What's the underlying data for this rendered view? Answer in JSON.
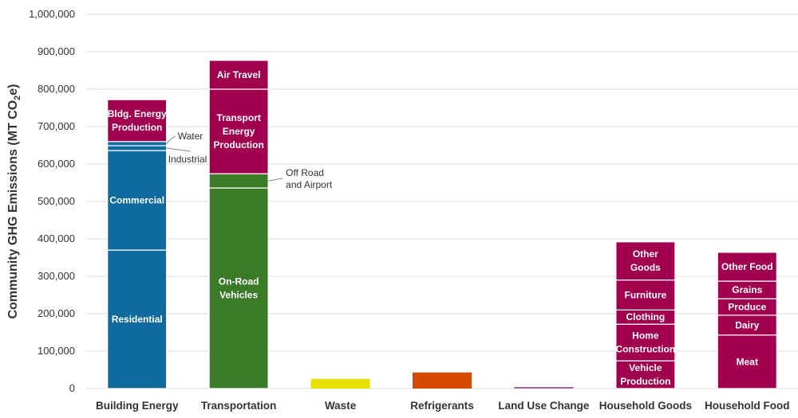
{
  "chart_data": {
    "type": "bar",
    "stacked": true,
    "ylabel": {
      "main": "Community GHG Emissions (MT CO",
      "sub": "2",
      "tail": "e)"
    },
    "ylim": [
      0,
      1000000
    ],
    "yticks": [
      0,
      100000,
      200000,
      300000,
      400000,
      500000,
      600000,
      700000,
      800000,
      900000,
      1000000
    ],
    "ytick_labels": [
      "0",
      "100,000",
      "200,000",
      "300,000",
      "400,000",
      "500,000",
      "600,000",
      "700,000",
      "800,000",
      "900,000",
      "1,000,000"
    ],
    "grid": true,
    "legend": "none",
    "categories": [
      "Building Energy",
      "Transportation",
      "Waste",
      "Refrigerants",
      "Land Use Change",
      "Household Goods",
      "Household Food"
    ],
    "bars": [
      {
        "category": "Building Energy",
        "color": "#0F6A9E",
        "segments": [
          {
            "label": [
              "Residential"
            ],
            "value": 370000
          },
          {
            "label": [
              "Commercial"
            ],
            "value": 266000
          },
          {
            "label": [
              "Industrial"
            ],
            "value": 13000,
            "outside": true
          },
          {
            "label": [
              "Water"
            ],
            "value": 11000,
            "outside": true
          },
          {
            "label": [
              "Bldg. Energy",
              "Production"
            ],
            "value": 112000,
            "color": "#A0004E"
          }
        ]
      },
      {
        "category": "Transportation",
        "color": "#3B7A27",
        "segments": [
          {
            "label": [
              "On-Road",
              "Vehicles"
            ],
            "value": 536000
          },
          {
            "label": [
              "Off Road",
              "and Airport"
            ],
            "value": 38000,
            "outside": true
          },
          {
            "label": [
              "Transport",
              "Energy",
              "Production"
            ],
            "value": 226000,
            "color": "#A0004E"
          },
          {
            "label": [
              "Air Travel"
            ],
            "value": 77000,
            "color": "#A0004E"
          }
        ]
      },
      {
        "category": "Waste",
        "color": "#E8E000",
        "segments": [
          {
            "label": [],
            "value": 26000
          }
        ]
      },
      {
        "category": "Refrigerants",
        "color": "#D44A00",
        "segments": [
          {
            "label": [],
            "value": 43000
          }
        ]
      },
      {
        "category": "Land Use Change",
        "color": "#A05A9A",
        "segments": [
          {
            "label": [],
            "value": 4000
          }
        ]
      },
      {
        "category": "Household Goods",
        "color": "#A0004E",
        "segments": [
          {
            "label": [
              "Vehicle",
              "Production"
            ],
            "value": 74000
          },
          {
            "label": [
              "Home",
              "Construction"
            ],
            "value": 98000
          },
          {
            "label": [
              "Clothing"
            ],
            "value": 38000
          },
          {
            "label": [
              "Furniture"
            ],
            "value": 80000
          },
          {
            "label": [
              "Other",
              "Goods"
            ],
            "value": 102000
          }
        ]
      },
      {
        "category": "Household Food",
        "color": "#A0004E",
        "segments": [
          {
            "label": [
              "Meat"
            ],
            "value": 143000
          },
          {
            "label": [
              "Dairy"
            ],
            "value": 53000
          },
          {
            "label": [
              "Produce"
            ],
            "value": 44000
          },
          {
            "label": [
              "Grains"
            ],
            "value": 47000
          },
          {
            "label": [
              "Other Food"
            ],
            "value": 77000
          }
        ]
      }
    ]
  }
}
